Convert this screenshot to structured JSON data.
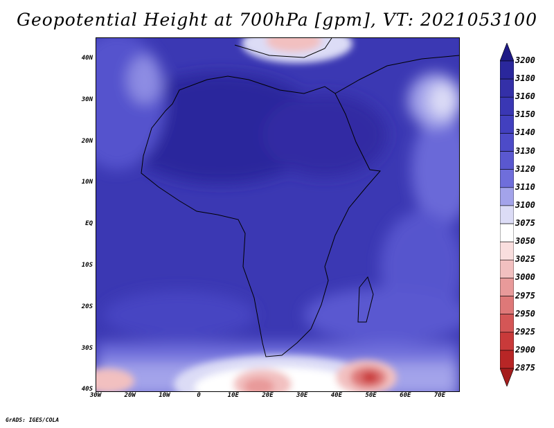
{
  "title": "Geopotential Height at 700hPa [gpm], VT: 2021053100",
  "footer": "GrADS: IGES/COLA",
  "map": {
    "lat_labels": [
      "40N",
      "30N",
      "20N",
      "10N",
      "EQ",
      "10S",
      "20S",
      "30S",
      "40S"
    ],
    "lon_labels": [
      "30W",
      "20W",
      "10W",
      "0",
      "10E",
      "20E",
      "30E",
      "40E",
      "50E",
      "60E",
      "70E"
    ]
  },
  "colorbar": {
    "levels": [
      "3200",
      "3180",
      "3160",
      "3150",
      "3140",
      "3130",
      "3120",
      "3110",
      "3100",
      "3075",
      "3050",
      "3025",
      "3000",
      "2975",
      "2950",
      "2925",
      "2900",
      "2875"
    ],
    "colors": [
      "#1e1a86",
      "#2a279c",
      "#3430a8",
      "#3a37b4",
      "#4240bf",
      "#4d4bc8",
      "#5a58d0",
      "#6f6edb",
      "#a3a3ea",
      "#dcdcf6",
      "#ffffff",
      "#f9dede",
      "#f2c0c0",
      "#e89a9a",
      "#de7878",
      "#d45656",
      "#c93a3a",
      "#b82626",
      "#a51d1d"
    ]
  }
}
